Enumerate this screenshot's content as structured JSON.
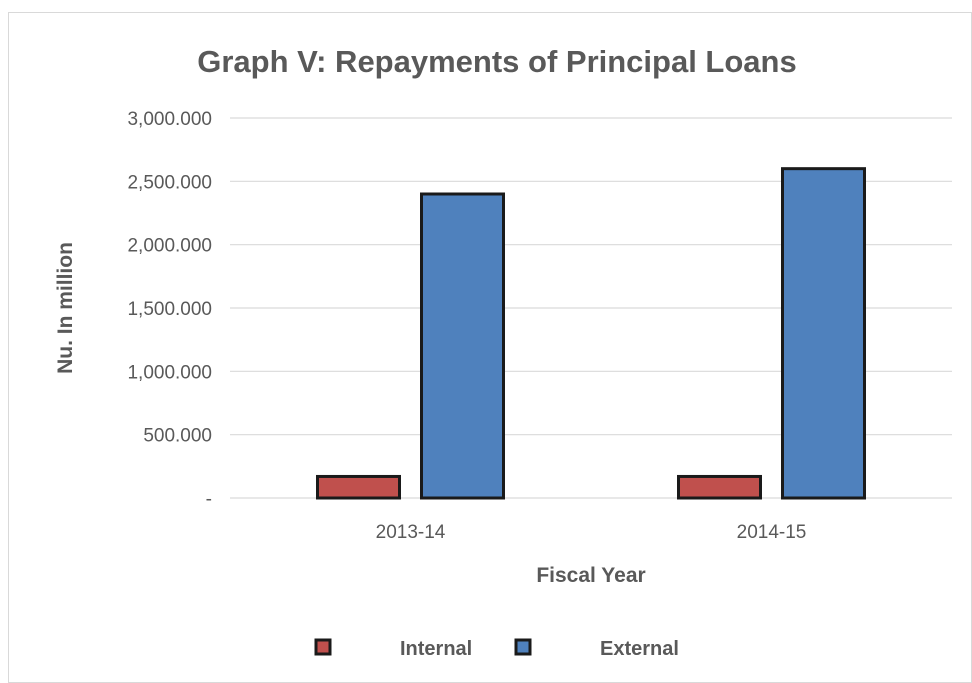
{
  "chart_data": {
    "type": "bar",
    "title": "Graph V: Repayments of Principal Loans",
    "xlabel": "Fiscal Year",
    "ylabel": "Nu. In million",
    "categories": [
      "2013-14",
      "2014-15"
    ],
    "series": [
      {
        "name": "Internal",
        "values": [
          170,
          170
        ],
        "color": "#c0504d"
      },
      {
        "name": "External",
        "values": [
          2400,
          2600
        ],
        "color": "#4f81bd"
      }
    ],
    "ylim": [
      0,
      3000
    ],
    "yticks": [
      0,
      500,
      1000,
      1500,
      2000,
      2500,
      3000
    ],
    "ytick_labels": [
      "-",
      "500.000",
      "1,000.000",
      "1,500.000",
      "2,000.000",
      "2,500.000",
      "3,000.000"
    ],
    "grid": true,
    "legend_position": "bottom",
    "bar_border_color": "#1a1a1a",
    "grid_color": "#d9d9d9"
  }
}
